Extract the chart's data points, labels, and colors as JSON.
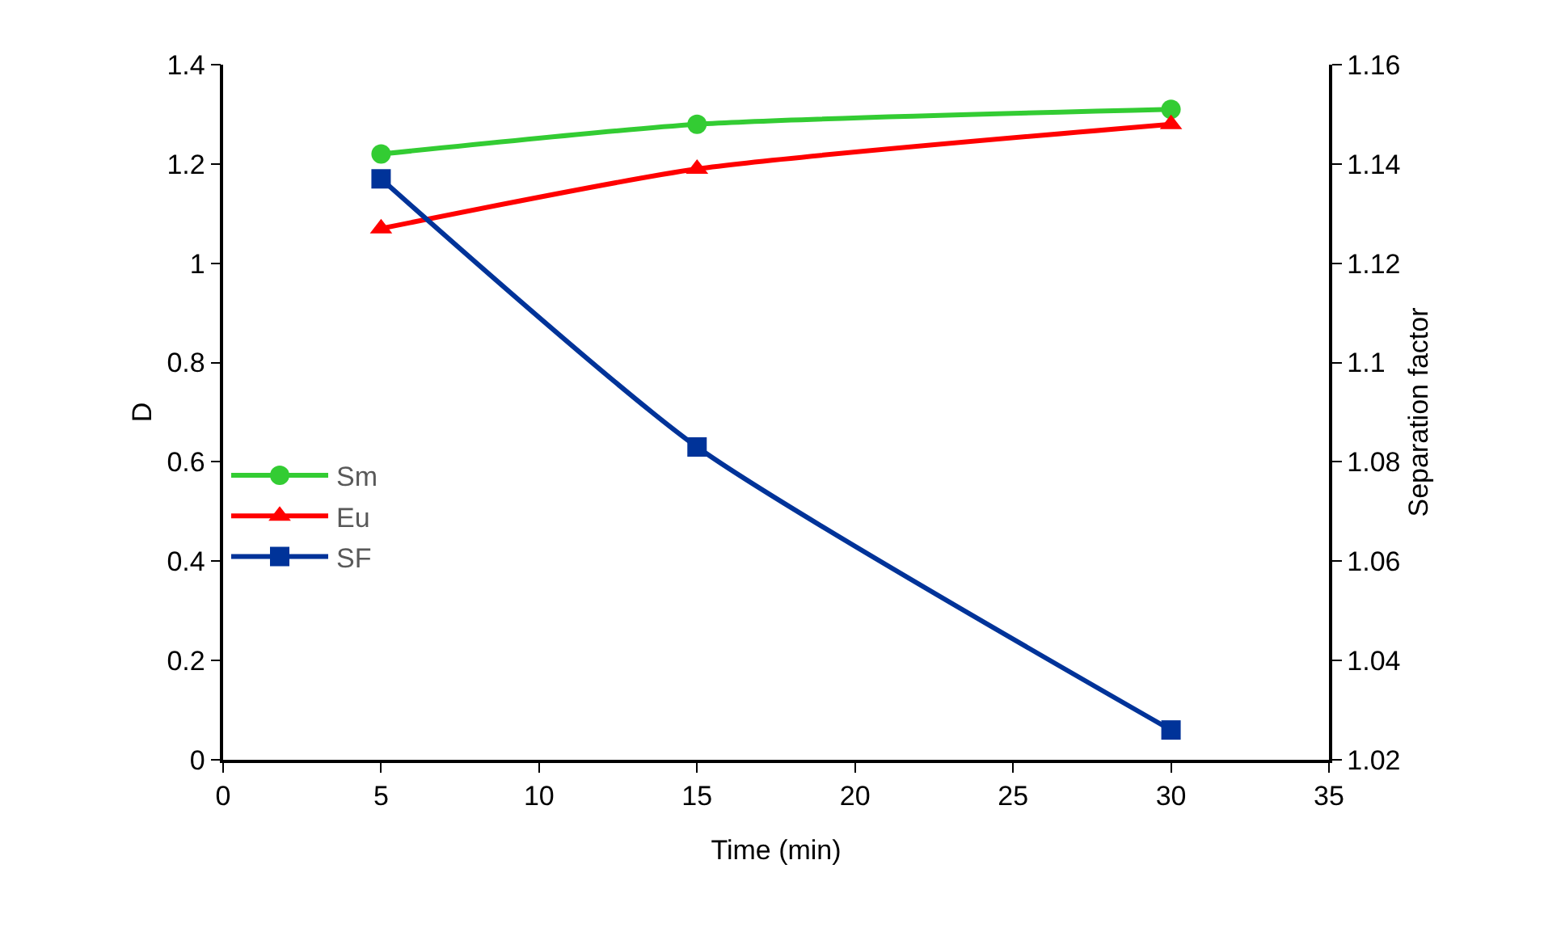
{
  "chart_data": {
    "type": "line",
    "xlabel": "Time (min)",
    "ylabel": "D",
    "y2label": "Separation factor",
    "x": [
      5,
      15,
      30
    ],
    "series": [
      {
        "name": "Sm",
        "color": "#33cc33",
        "marker": "circle",
        "values": [
          1.22,
          1.28,
          1.31
        ]
      },
      {
        "name": "Eu",
        "color": "#ff0000",
        "marker": "triangle",
        "values": [
          1.07,
          1.19,
          1.28
        ]
      },
      {
        "name": "SF",
        "color": "#003399",
        "marker": "square",
        "axis": "y2",
        "values": [
          1.137,
          1.083,
          1.026
        ]
      }
    ],
    "xlim": [
      0,
      35
    ],
    "xticks": [
      0,
      5,
      10,
      15,
      20,
      25,
      30,
      35
    ],
    "ylim": [
      0,
      1.4
    ],
    "yticks": [
      0,
      0.2,
      0.4,
      0.6,
      0.8,
      1,
      1.2,
      1.4
    ],
    "y2lim": [
      1.02,
      1.16
    ],
    "y2ticks": [
      1.02,
      1.04,
      1.06,
      1.08,
      1.1,
      1.12,
      1.14,
      1.16
    ],
    "grid": false,
    "legend": "left",
    "line_style": "solid"
  }
}
